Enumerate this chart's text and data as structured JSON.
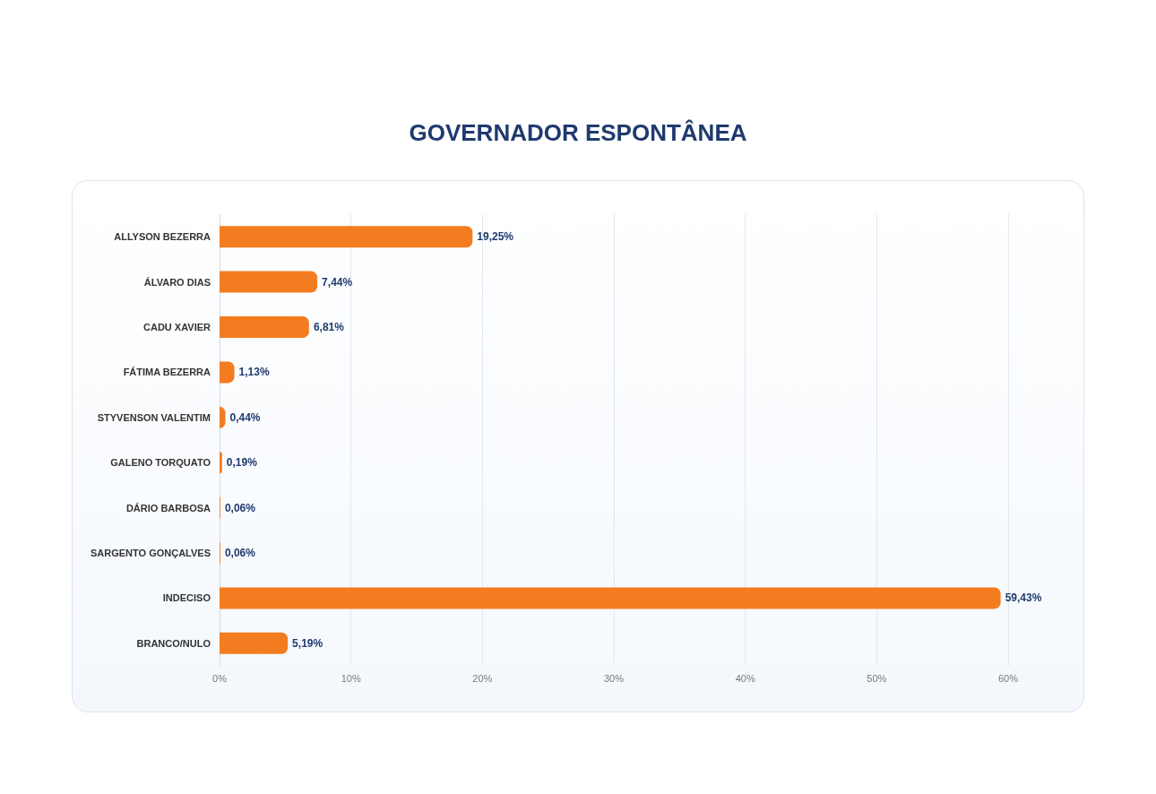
{
  "chart_data": {
    "type": "bar",
    "orientation": "horizontal",
    "title": "GOVERNADOR ESPONTÂNEA",
    "categories": [
      "ALLYSON BEZERRA",
      "ÁLVARO DIAS",
      "CADU XAVIER",
      "FÁTIMA BEZERRA",
      "STYVENSON VALENTIM",
      "GALENO TORQUATO",
      "DÁRIO BARBOSA",
      "SARGENTO GONÇALVES",
      "INDECISO",
      "BRANCO/NULO"
    ],
    "values": [
      19.25,
      7.44,
      6.81,
      1.13,
      0.44,
      0.19,
      0.06,
      0.06,
      59.43,
      5.19
    ],
    "value_labels": [
      "19,25%",
      "7,44%",
      "6,81%",
      "1,13%",
      "0,44%",
      "0,19%",
      "0,06%",
      "0,06%",
      "59,43%",
      "5,19%"
    ],
    "color": "#f47c20",
    "xlim": [
      0,
      60
    ],
    "xticks": [
      {
        "value": 0,
        "label": "0%"
      },
      {
        "value": 10,
        "label": "10%"
      },
      {
        "value": 20,
        "label": "20%"
      },
      {
        "value": 30,
        "label": "30%"
      },
      {
        "value": 40,
        "label": "40%"
      },
      {
        "value": 50,
        "label": "50%"
      },
      {
        "value": 60,
        "label": "60%"
      }
    ],
    "grid": "x"
  }
}
